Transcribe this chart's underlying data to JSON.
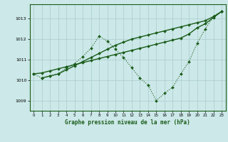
{
  "title": "Graphe pression niveau de la mer (hPa)",
  "bg_color": "#cce8e8",
  "line_color": "#1a5c1a",
  "grid_color": "#aacccc",
  "ylim": [
    1008.5,
    1013.7
  ],
  "xlim": [
    -0.5,
    23.5
  ],
  "yticks": [
    1009,
    1010,
    1011,
    1012,
    1013
  ],
  "xticks": [
    0,
    1,
    2,
    3,
    4,
    5,
    6,
    7,
    8,
    9,
    10,
    11,
    12,
    13,
    14,
    15,
    16,
    17,
    18,
    19,
    20,
    21,
    22,
    23
  ],
  "lines": [
    {
      "x": [
        0,
        1,
        2,
        3,
        4,
        5,
        6,
        7,
        8,
        9,
        10,
        11,
        12,
        13,
        14,
        15,
        16,
        17,
        18,
        19,
        20,
        21,
        22,
        23
      ],
      "y": [
        1010.3,
        1010.35,
        1010.45,
        1010.55,
        1010.65,
        1010.75,
        1010.85,
        1010.95,
        1011.05,
        1011.15,
        1011.25,
        1011.35,
        1011.45,
        1011.55,
        1011.65,
        1011.75,
        1011.85,
        1011.95,
        1012.05,
        1012.25,
        1012.55,
        1012.75,
        1013.05,
        1013.35
      ],
      "style": "solid",
      "marker": true
    },
    {
      "x": [
        1,
        2,
        3,
        4,
        5,
        6,
        7,
        8,
        9,
        10,
        11,
        12,
        13,
        14,
        15,
        16,
        17,
        18,
        19,
        20,
        21,
        22,
        23
      ],
      "y": [
        1010.1,
        1010.2,
        1010.3,
        1010.5,
        1010.7,
        1010.9,
        1011.1,
        1011.3,
        1011.5,
        1011.7,
        1011.85,
        1012.0,
        1012.1,
        1012.2,
        1012.3,
        1012.4,
        1012.5,
        1012.6,
        1012.7,
        1012.8,
        1012.9,
        1013.1,
        1013.35
      ],
      "style": "solid",
      "marker": true
    },
    {
      "x": [
        0,
        1,
        2,
        3,
        4,
        5,
        6,
        7,
        8,
        9,
        10,
        11,
        12,
        13,
        14,
        15,
        16,
        17,
        18,
        19,
        20,
        21,
        22,
        23
      ],
      "y": [
        1010.3,
        1010.1,
        1010.2,
        1010.3,
        1010.6,
        1010.8,
        1011.15,
        1011.55,
        1012.15,
        1011.9,
        1011.5,
        1011.1,
        1010.6,
        1010.1,
        1009.75,
        1009.0,
        1009.35,
        1009.65,
        1010.3,
        1010.9,
        1011.8,
        1012.5,
        1013.1,
        1013.35
      ],
      "style": "dotted",
      "marker": true
    }
  ]
}
